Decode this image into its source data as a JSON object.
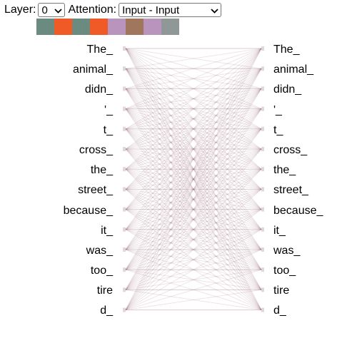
{
  "controls": {
    "layer_label": "Layer:",
    "layer_value": "0",
    "attention_label": "Attention:",
    "attention_value": "Input - Input"
  },
  "head_colors": [
    "#6b8a80",
    "#ef5a26",
    "#6b8a80",
    "#ef5a26",
    "#b995bd",
    "#a0765c",
    "#b995bd",
    "#8f9896"
  ],
  "tokens_left": [
    "The_",
    "animal_",
    "didn_",
    "'_",
    "t_",
    "cross_",
    "the_",
    "street_",
    "because_",
    "it_",
    "was_",
    "too_",
    "tire",
    "d_"
  ],
  "tokens_right": [
    "The_",
    "animal_",
    "didn_",
    "'_",
    "t_",
    "cross_",
    "the_",
    "street_",
    "because_",
    "it_",
    "was_",
    "too_",
    "tire",
    "d_"
  ],
  "attention_line_color": "#8c5f6f"
}
